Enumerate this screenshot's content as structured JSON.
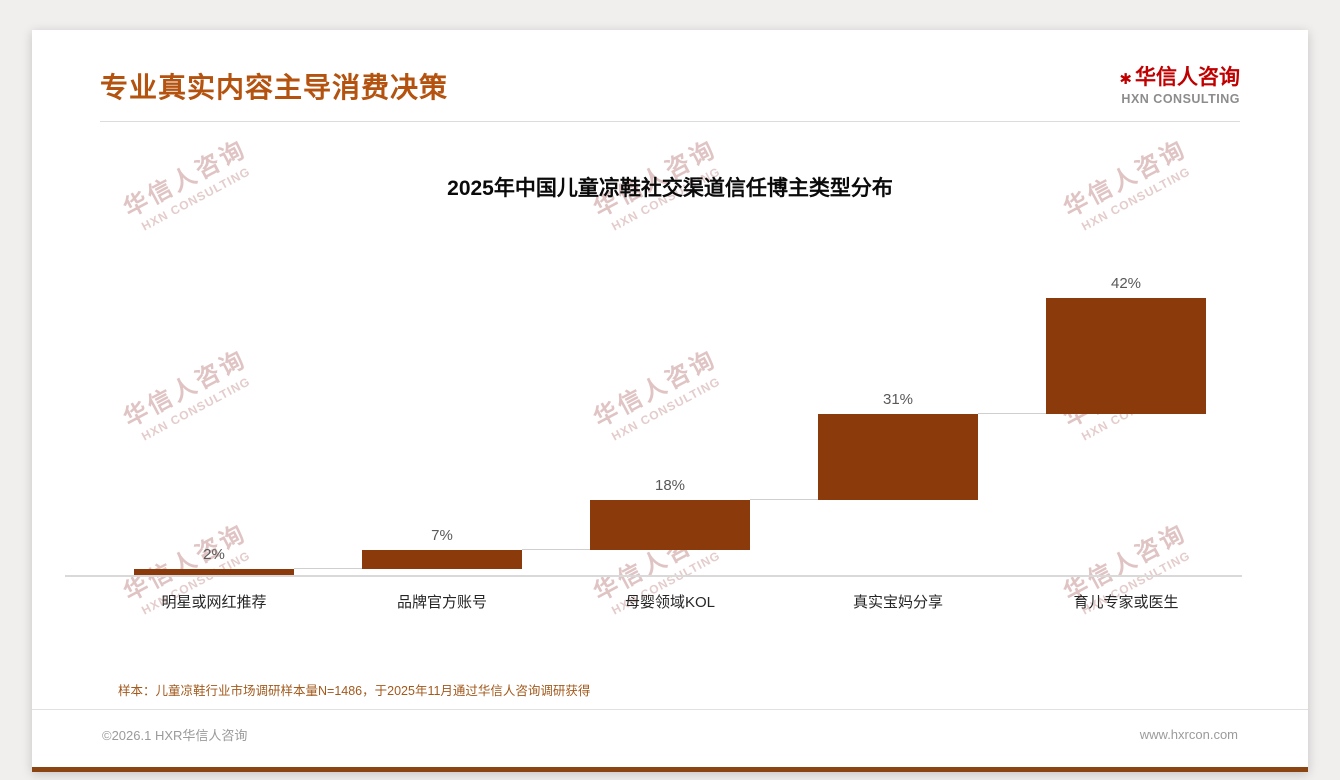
{
  "header": {
    "title": "专业真实内容主导消费决策"
  },
  "logo": {
    "mark": "✱",
    "cn": "华信人咨询",
    "en": "HXN CONSULTING"
  },
  "watermark": {
    "line1": "华信人咨询",
    "line2": "HXN CONSULTING"
  },
  "chart_data": {
    "type": "bar",
    "subtype": "waterfall-step",
    "title": "2025年中国儿童凉鞋社交渠道信任博主类型分布",
    "categories": [
      "明星或网红推荐",
      "品牌官方账号",
      "母婴领域KOL",
      "真实宝妈分享",
      "育儿专家或医生"
    ],
    "values": [
      2,
      7,
      18,
      31,
      42
    ],
    "labels": [
      "2%",
      "7%",
      "18%",
      "31%",
      "42%"
    ],
    "unit": "%",
    "ylim": [
      0,
      100
    ],
    "bar_color": "#8B3A0B",
    "grid": false,
    "legend": "none"
  },
  "footnote": {
    "text": "样本：儿童凉鞋行业市场调研样本量N=1486，于2025年11月通过华信人咨询调研获得"
  },
  "footer": {
    "left": "©2026.1 HXR华信人咨询",
    "right": "www.hxrcon.com"
  },
  "colors": {
    "accent": "#B4530F",
    "bar": "#8B3A0B",
    "logo_red": "#C00000",
    "border_brown": "#8B4513"
  }
}
